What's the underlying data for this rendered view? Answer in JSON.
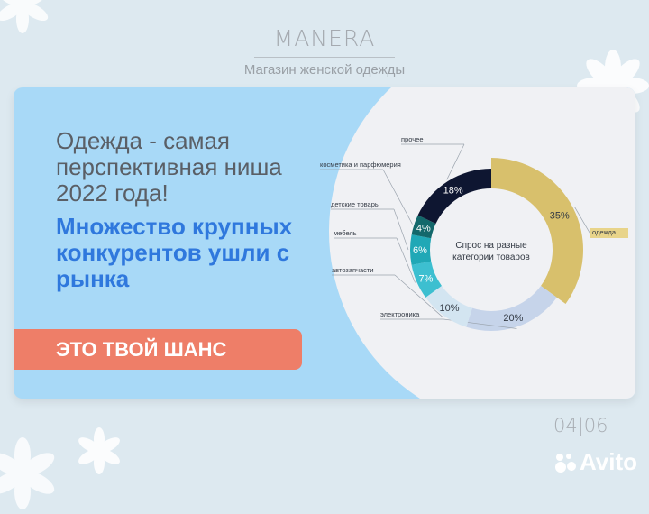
{
  "brand": {
    "name": "MANERA",
    "tagline": "Магазин женской одежды"
  },
  "slide": {
    "headline": "Одежда - самая перспективная ниша 2022 года!",
    "subheadline": "Множество крупных конкурентов ушли с рынка",
    "cta_label": "ЭТО ТВОЙ ШАНС",
    "pager": "04|06",
    "watermark": "Avito"
  },
  "colors": {
    "card": "#a8d9f7",
    "subheadline": "#2f78dd",
    "cta": "#ee7e68"
  },
  "chart_data": {
    "type": "pie",
    "donut": true,
    "title": "Спрос на разные категории товаров",
    "categories": [
      "одежда",
      "электроника",
      "автозапчасти",
      "мебель",
      "детские товары",
      "косметика и парфюмерия",
      "прочее"
    ],
    "values": [
      35,
      20,
      10,
      7,
      6,
      4,
      18
    ],
    "value_labels": [
      "35%",
      "20%",
      "10%",
      "7%",
      "6%",
      "4%",
      "18%"
    ],
    "colors": [
      "#d8c06c",
      "#c6d4ea",
      "#d3e5f1",
      "#3dbfd0",
      "#20a8b6",
      "#13686b",
      "#0e1631"
    ]
  }
}
